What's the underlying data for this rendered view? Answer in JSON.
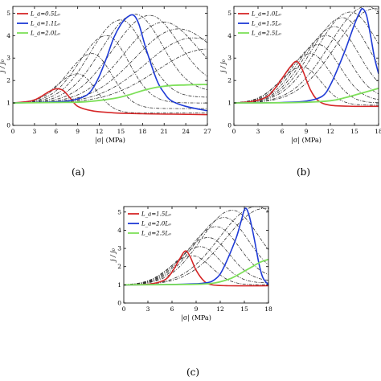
{
  "panel_labels": [
    "(a)",
    "(b)",
    "(c)"
  ],
  "chart_data": [
    {
      "panel": "(a)",
      "type": "line",
      "xlabel": "|σ| (MPa)",
      "ylabel": "j / j₀",
      "xlim": [
        0,
        27
      ],
      "ylim": [
        0,
        5.3
      ],
      "xticks": [
        0,
        3,
        6,
        9,
        12,
        15,
        18,
        21,
        24,
        27
      ],
      "yticks": [
        0,
        1,
        2,
        3,
        4,
        5
      ],
      "legend_position": "top-left",
      "series": [
        {
          "name": "L_a=0.5L₀",
          "color": "#d62728",
          "width": 1.6,
          "points": [
            [
              0,
              1
            ],
            [
              2,
              1.06
            ],
            [
              3,
              1.13
            ],
            [
              4,
              1.3
            ],
            [
              5,
              1.5
            ],
            [
              6,
              1.63
            ],
            [
              7,
              1.55
            ],
            [
              8,
              1.2
            ],
            [
              9,
              0.85
            ],
            [
              11,
              0.65
            ],
            [
              14,
              0.56
            ],
            [
              18,
              0.52
            ],
            [
              22,
              0.5
            ],
            [
              27,
              0.48
            ]
          ]
        },
        {
          "name": "L_a=1.1L₀",
          "color": "#1f3bd6",
          "width": 1.6,
          "points": [
            [
              0,
              1
            ],
            [
              3,
              1.02
            ],
            [
              6,
              1.05
            ],
            [
              8,
              1.1
            ],
            [
              10,
              1.3
            ],
            [
              11,
              1.6
            ],
            [
              12,
              2.2
            ],
            [
              13,
              3.0
            ],
            [
              14,
              3.9
            ],
            [
              15,
              4.5
            ],
            [
              16,
              4.85
            ],
            [
              16.8,
              4.9
            ],
            [
              17.5,
              4.5
            ],
            [
              18.5,
              3.4
            ],
            [
              20,
              2.0
            ],
            [
              21,
              1.45
            ],
            [
              22,
              1.1
            ],
            [
              24,
              0.85
            ],
            [
              27,
              0.65
            ]
          ]
        },
        {
          "name": "L_a=2.0L₀",
          "color": "#7ee05a",
          "width": 1.8,
          "points": [
            [
              0,
              1
            ],
            [
              6,
              1.02
            ],
            [
              10,
              1.05
            ],
            [
              14,
              1.2
            ],
            [
              16,
              1.35
            ],
            [
              18,
              1.55
            ],
            [
              20,
              1.7
            ],
            [
              22,
              1.78
            ],
            [
              24,
              1.8
            ],
            [
              26,
              1.82
            ],
            [
              27,
              1.82
            ]
          ]
        }
      ],
      "dashed_color": "#333333",
      "dashed_peaks": [
        [
          9,
          2.3
        ],
        [
          11,
          3.2
        ],
        [
          13,
          4.0
        ],
        [
          15,
          4.7
        ],
        [
          17,
          4.95
        ],
        [
          19,
          4.9
        ],
        [
          21,
          4.6
        ],
        [
          23,
          4.3
        ],
        [
          25,
          3.9
        ],
        [
          27,
          3.4
        ]
      ],
      "dashed_tails": [
        0.55,
        0.75,
        1.0,
        1.25,
        1.5,
        1.75,
        2.0,
        2.3,
        2.6,
        3.0
      ]
    },
    {
      "panel": "(b)",
      "type": "line",
      "xlabel": "|σ| (MPa)",
      "ylabel": "j / j₀",
      "xlim": [
        0,
        18
      ],
      "ylim": [
        0,
        5.3
      ],
      "xticks": [
        0,
        3,
        6,
        9,
        12,
        15,
        18
      ],
      "yticks": [
        0,
        1,
        2,
        3,
        4,
        5
      ],
      "legend_position": "top-left",
      "series": [
        {
          "name": "L_a=1.0L₀",
          "color": "#d62728",
          "width": 1.6,
          "points": [
            [
              0,
              1
            ],
            [
              2,
              1.05
            ],
            [
              4,
              1.25
            ],
            [
              5,
              1.6
            ],
            [
              6,
              2.1
            ],
            [
              7,
              2.6
            ],
            [
              7.8,
              2.85
            ],
            [
              8.5,
              2.5
            ],
            [
              9.5,
              1.6
            ],
            [
              10.5,
              1.1
            ],
            [
              12,
              0.9
            ],
            [
              15,
              0.85
            ],
            [
              18,
              0.85
            ]
          ]
        },
        {
          "name": "L_a=1.5L₀",
          "color": "#1f3bd6",
          "width": 1.6,
          "points": [
            [
              0,
              1
            ],
            [
              6,
              1.02
            ],
            [
              9,
              1.08
            ],
            [
              11,
              1.3
            ],
            [
              12,
              1.8
            ],
            [
              13,
              2.6
            ],
            [
              14,
              3.5
            ],
            [
              15,
              4.5
            ],
            [
              15.6,
              5.0
            ],
            [
              16,
              5.2
            ],
            [
              16.5,
              4.9
            ],
            [
              17,
              4.0
            ],
            [
              17.5,
              3.0
            ],
            [
              18,
              2.3
            ]
          ]
        },
        {
          "name": "L_a=2.5L₀",
          "color": "#7ee05a",
          "width": 1.8,
          "points": [
            [
              0,
              1
            ],
            [
              8,
              1.02
            ],
            [
              12,
              1.1
            ],
            [
              14,
              1.25
            ],
            [
              16,
              1.45
            ],
            [
              18,
              1.65
            ]
          ]
        }
      ],
      "dashed_color": "#333333",
      "dashed_peaks": [
        [
          8.5,
          2.6
        ],
        [
          9.5,
          3.2
        ],
        [
          10.5,
          3.6
        ],
        [
          11.5,
          4.0
        ],
        [
          12.5,
          4.4
        ],
        [
          13.5,
          4.8
        ],
        [
          14.5,
          5.05
        ],
        [
          16.5,
          5.3
        ],
        [
          17.5,
          5.2
        ]
      ],
      "dashed_tails": [
        0.9,
        1.0,
        1.1,
        1.2,
        1.35,
        1.5,
        1.7,
        2.0,
        2.6
      ]
    },
    {
      "panel": "(c)",
      "type": "line",
      "xlabel": "|σ| (MPa)",
      "ylabel": "j / j₀",
      "xlim": [
        0,
        18
      ],
      "ylim": [
        0,
        5.3
      ],
      "xticks": [
        0,
        3,
        6,
        9,
        12,
        15,
        18
      ],
      "yticks": [
        0,
        1,
        2,
        3,
        4,
        5
      ],
      "legend_position": "top-left",
      "series": [
        {
          "name": "L_a=1.5L₀",
          "color": "#d62728",
          "width": 1.6,
          "points": [
            [
              0,
              1
            ],
            [
              3,
              1.03
            ],
            [
              5,
              1.25
            ],
            [
              6,
              1.7
            ],
            [
              6.8,
              2.3
            ],
            [
              7.6,
              2.85
            ],
            [
              8.2,
              2.6
            ],
            [
              9,
              1.8
            ],
            [
              10,
              1.2
            ],
            [
              11,
              1.0
            ],
            [
              13,
              0.95
            ],
            [
              18,
              0.95
            ]
          ]
        },
        {
          "name": "L_a=2.0L₀",
          "color": "#1f3bd6",
          "width": 1.6,
          "points": [
            [
              0,
              1
            ],
            [
              6,
              1.02
            ],
            [
              9,
              1.06
            ],
            [
              10,
              1.1
            ],
            [
              11,
              1.2
            ],
            [
              12,
              1.6
            ],
            [
              13,
              2.5
            ],
            [
              14,
              3.6
            ],
            [
              14.6,
              4.5
            ],
            [
              15.1,
              5.2
            ],
            [
              15.6,
              4.8
            ],
            [
              16.2,
              3.6
            ],
            [
              16.8,
              2.2
            ],
            [
              17.3,
              1.4
            ],
            [
              18,
              1.0
            ]
          ]
        },
        {
          "name": "L_a=2.5L₀",
          "color": "#7ee05a",
          "width": 1.8,
          "points": [
            [
              0,
              1
            ],
            [
              8,
              1.02
            ],
            [
              11,
              1.08
            ],
            [
              13,
              1.3
            ],
            [
              14,
              1.5
            ],
            [
              15,
              1.75
            ],
            [
              16,
              2.0
            ],
            [
              17,
              2.25
            ],
            [
              18,
              2.4
            ]
          ]
        }
      ],
      "dashed_color": "#333333",
      "dashed_peaks": [
        [
          8.5,
          2.6
        ],
        [
          9.5,
          3.1
        ],
        [
          10.5,
          3.6
        ],
        [
          11.5,
          4.2
        ],
        [
          12.5,
          4.7
        ],
        [
          13.5,
          5.1
        ],
        [
          16.5,
          5.3
        ],
        [
          17.5,
          5.2
        ]
      ],
      "dashed_tails": [
        1.0,
        1.1,
        1.2,
        1.35,
        1.5,
        1.7,
        2.0,
        2.5
      ]
    }
  ]
}
